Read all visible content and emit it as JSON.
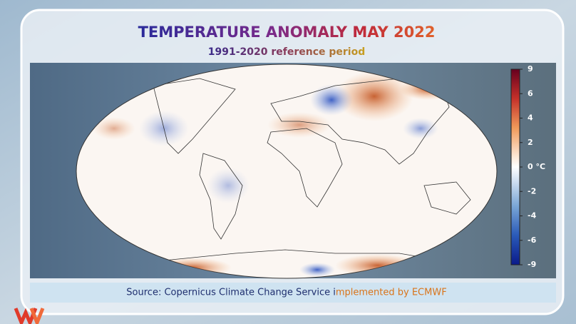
{
  "header": {
    "title": "TEMPERATURE ANOMALY MAY 2022",
    "subtitle": "1991-2020 reference period"
  },
  "colorbar": {
    "ticks": [
      9,
      6,
      4,
      2,
      {
        "value": 0,
        "label": "0 °C"
      },
      -2,
      -4,
      -6,
      -9
    ]
  },
  "footer": {
    "source": "Source: Copernicus Climate Change Service implemented by ECMWF"
  }
}
